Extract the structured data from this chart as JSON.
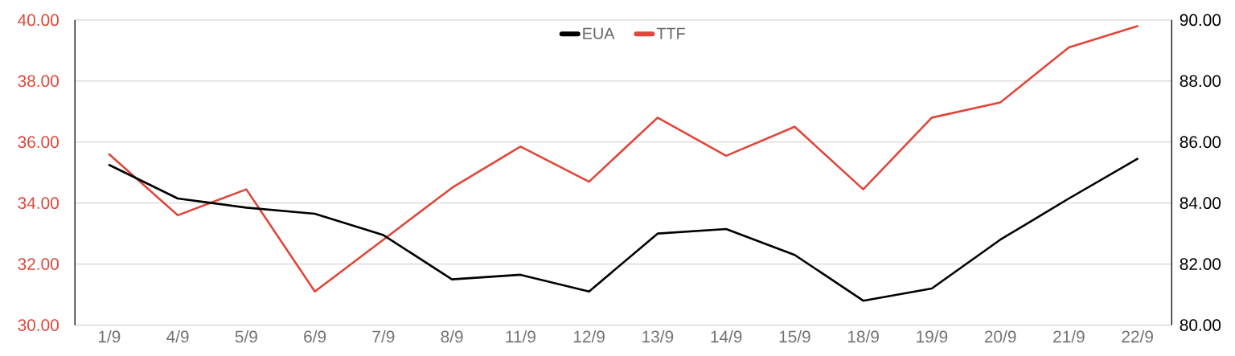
{
  "chart_data": {
    "type": "line",
    "categories": [
      "1/9",
      "4/9",
      "5/9",
      "6/9",
      "7/9",
      "8/9",
      "11/9",
      "12/9",
      "13/9",
      "14/9",
      "15/9",
      "18/9",
      "19/9",
      "20/9",
      "21/9",
      "22/9"
    ],
    "series": [
      {
        "name": "EUA",
        "color": "#000000",
        "axis": "y2",
        "values": [
          85.25,
          84.15,
          83.85,
          83.65,
          82.95,
          81.5,
          81.65,
          81.1,
          83.0,
          83.15,
          82.3,
          80.8,
          81.2,
          82.8,
          84.15,
          85.45
        ]
      },
      {
        "name": "TTF",
        "color": "#e0463a",
        "values": [
          35.6,
          33.6,
          34.45,
          31.1,
          32.8,
          34.5,
          35.85,
          34.7,
          36.8,
          35.55,
          36.5,
          34.45,
          36.8,
          37.3,
          39.1,
          39.8
        ]
      }
    ],
    "ylim": [
      30,
      40
    ],
    "yticks": [
      {
        "value": 30,
        "label": "30.00"
      },
      {
        "value": 32,
        "label": "32.00"
      },
      {
        "value": 34,
        "label": "34.00"
      },
      {
        "value": 36,
        "label": "36.00"
      },
      {
        "value": 38,
        "label": "38.00"
      },
      {
        "value": 40,
        "label": "40.00"
      }
    ],
    "y2lim": [
      80,
      90
    ],
    "y2ticks": [
      {
        "value": 80,
        "label": "80.00"
      },
      {
        "value": 82,
        "label": "82.00"
      },
      {
        "value": 84,
        "label": "84.00"
      },
      {
        "value": 86,
        "label": "86.00"
      },
      {
        "value": 88,
        "label": "88.00"
      },
      {
        "value": 90,
        "label": "90.00"
      }
    ],
    "grid": "y",
    "legend": "top"
  }
}
